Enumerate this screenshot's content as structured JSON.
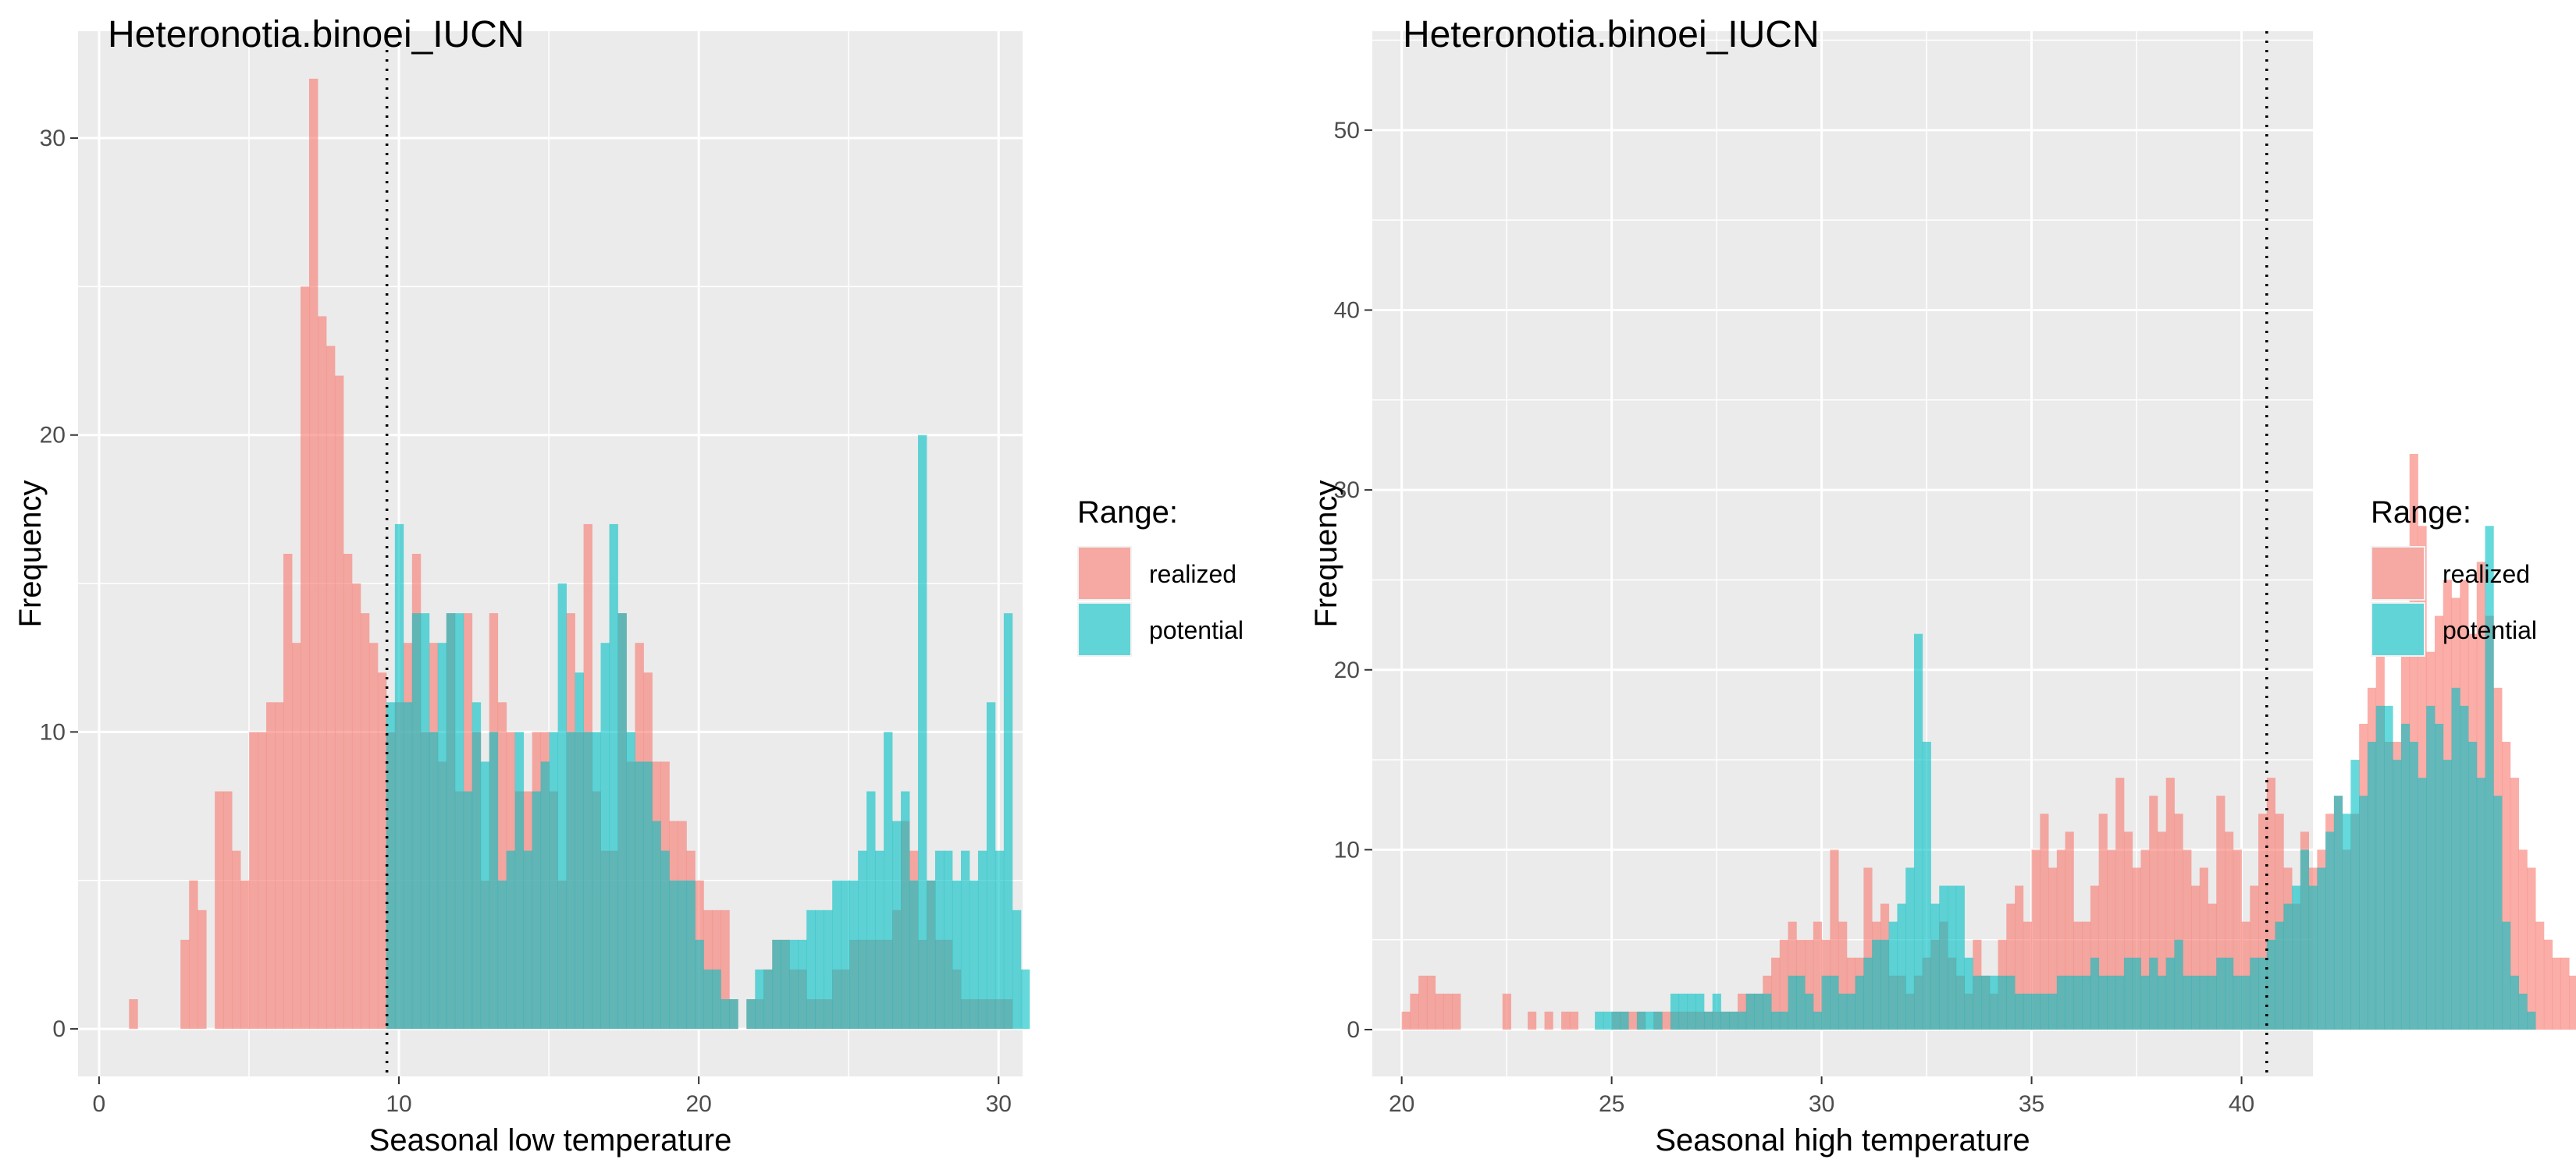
{
  "colors": {
    "realized": "#F8766D",
    "potential": "#00BFC4",
    "panel": "#EBEBEB",
    "grid": "#FFFFFF"
  },
  "chart_data": [
    {
      "type": "bar",
      "title": "Heteronotia.binoei_IUCN",
      "xlabel": "Seasonal low temperature",
      "ylabel": "Frequency",
      "xlim": [
        -0.7,
        30.8
      ],
      "ylim": [
        -1.6,
        33.6
      ],
      "xticks": [
        0,
        10,
        20,
        30
      ],
      "yticks": [
        0,
        10,
        20,
        30
      ],
      "bin_start": 1.0,
      "bin_width": 0.286,
      "vline": 9.6,
      "legend_title": "Range:",
      "legend_placement": "right",
      "series": [
        {
          "name": "realized",
          "values": [
            1,
            0,
            0,
            0,
            0,
            0,
            3,
            5,
            4,
            0,
            8,
            8,
            6,
            5,
            10,
            10,
            11,
            11,
            16,
            13,
            25,
            32,
            24,
            23,
            22,
            16,
            15,
            14,
            13,
            12,
            10,
            11,
            13,
            16,
            10,
            13,
            9,
            14,
            8,
            14,
            10,
            5,
            14,
            11,
            10,
            8,
            8,
            10,
            10,
            8,
            5,
            14,
            10,
            17,
            8,
            6,
            6,
            14,
            9,
            13,
            12,
            9,
            9,
            7,
            7,
            6,
            5,
            4,
            4,
            4,
            1,
            0,
            1,
            1,
            2,
            3,
            3,
            2,
            2,
            1,
            1,
            1,
            2,
            2,
            3,
            3,
            3,
            3,
            3,
            4,
            7,
            6,
            3,
            5,
            3,
            3,
            2,
            1,
            1,
            1,
            1,
            1,
            1,
            0,
            0,
            0,
            0,
            0,
            0,
            0,
            0,
            0,
            0,
            0,
            0,
            0,
            0,
            0,
            0,
            0,
            0,
            0,
            0,
            0,
            0,
            0,
            0,
            0,
            0,
            0,
            0,
            0,
            0,
            0,
            0,
            0,
            0,
            0,
            0,
            0,
            0,
            0
          ]
        },
        {
          "name": "potential",
          "values": [
            0,
            0,
            0,
            0,
            0,
            0,
            0,
            0,
            0,
            0,
            0,
            0,
            0,
            0,
            0,
            0,
            0,
            0,
            0,
            0,
            0,
            0,
            0,
            0,
            0,
            0,
            0,
            0,
            0,
            0,
            11,
            17,
            11,
            14,
            14,
            10,
            13,
            14,
            14,
            8,
            11,
            9,
            10,
            5,
            6,
            10,
            6,
            8,
            9,
            10,
            15,
            10,
            12,
            10,
            10,
            13,
            17,
            14,
            10,
            9,
            9,
            7,
            6,
            5,
            5,
            5,
            3,
            2,
            2,
            1,
            1,
            0,
            1,
            2,
            2,
            3,
            3,
            3,
            3,
            4,
            4,
            4,
            5,
            5,
            5,
            6,
            8,
            6,
            10,
            7,
            8,
            5,
            20,
            5,
            6,
            6,
            5,
            6,
            5,
            6,
            11,
            6,
            14,
            4,
            2,
            0,
            0,
            0,
            0,
            0,
            0,
            0,
            0,
            0,
            0,
            0,
            0,
            0,
            0,
            0,
            0,
            0,
            0,
            0,
            0,
            0,
            0,
            0,
            0,
            0,
            0,
            0,
            0,
            0,
            0,
            0,
            0,
            0,
            0,
            0,
            0,
            0,
            0,
            0,
            0,
            0,
            0,
            0
          ]
        }
      ]
    },
    {
      "type": "bar",
      "title": "Heteronotia.binoei_IUCN",
      "xlabel": "Seasonal high temperature",
      "ylabel": "Frequency",
      "xlim": [
        19.3,
        41.7
      ],
      "ylim": [
        -2.6,
        55.5
      ],
      "xticks": [
        20,
        25,
        30,
        35,
        40
      ],
      "yticks": [
        0,
        10,
        20,
        30,
        40,
        50
      ],
      "bin_start": 20.0,
      "bin_width": 0.2,
      "vline": 40.6,
      "legend_title": "Range:",
      "legend_placement": "right",
      "series": [
        {
          "name": "realized",
          "values": [
            1,
            2,
            3,
            3,
            2,
            2,
            2,
            0,
            0,
            0,
            0,
            0,
            2,
            0,
            0,
            1,
            0,
            1,
            0,
            1,
            1,
            0,
            0,
            0,
            0,
            1,
            1,
            1,
            1,
            0,
            1,
            1,
            1,
            1,
            1,
            1,
            1,
            1,
            1,
            1,
            2,
            2,
            2,
            3,
            4,
            5,
            6,
            5,
            5,
            6,
            5,
            10,
            6,
            4,
            4,
            9,
            6,
            7,
            3,
            3,
            2,
            3,
            4,
            5,
            6,
            4,
            3,
            2,
            5,
            3,
            2,
            5,
            7,
            8,
            6,
            10,
            12,
            9,
            10,
            11,
            6,
            6,
            8,
            12,
            10,
            14,
            11,
            9,
            10,
            13,
            11,
            14,
            12,
            10,
            8,
            9,
            7,
            13,
            11,
            10,
            6,
            8,
            12,
            14,
            12,
            9,
            7,
            11,
            9,
            10,
            12,
            13,
            10,
            12,
            17,
            19,
            21,
            16,
            16,
            22,
            32,
            28,
            21,
            23,
            25,
            24,
            25,
            22,
            26,
            23,
            19,
            16,
            14,
            10,
            9,
            6,
            5,
            4,
            4,
            3,
            2,
            1,
            1,
            0,
            0
          ]
        },
        {
          "name": "potential",
          "values": [
            0,
            0,
            0,
            0,
            0,
            0,
            0,
            0,
            0,
            0,
            0,
            0,
            0,
            0,
            0,
            0,
            0,
            0,
            0,
            0,
            0,
            0,
            0,
            1,
            1,
            1,
            1,
            0,
            1,
            1,
            1,
            0,
            2,
            2,
            2,
            2,
            1,
            2,
            1,
            1,
            1,
            2,
            2,
            2,
            1,
            1,
            3,
            3,
            2,
            1,
            3,
            3,
            2,
            2,
            3,
            4,
            5,
            5,
            6,
            7,
            9,
            22,
            16,
            7,
            8,
            8,
            8,
            4,
            3,
            3,
            3,
            3,
            3,
            2,
            2,
            2,
            2,
            2,
            3,
            3,
            3,
            3,
            4,
            3,
            3,
            3,
            4,
            4,
            3,
            4,
            3,
            4,
            5,
            3,
            3,
            3,
            3,
            4,
            4,
            3,
            3,
            4,
            4,
            5,
            6,
            7,
            8,
            10,
            8,
            9,
            11,
            13,
            12,
            15,
            13,
            16,
            18,
            18,
            15,
            17,
            16,
            14,
            18,
            17,
            15,
            19,
            18,
            16,
            14,
            28,
            13,
            6,
            3,
            2,
            1,
            0,
            0,
            0,
            0,
            0,
            0,
            0,
            0,
            0,
            0,
            0,
            0,
            0
          ]
        }
      ]
    }
  ]
}
